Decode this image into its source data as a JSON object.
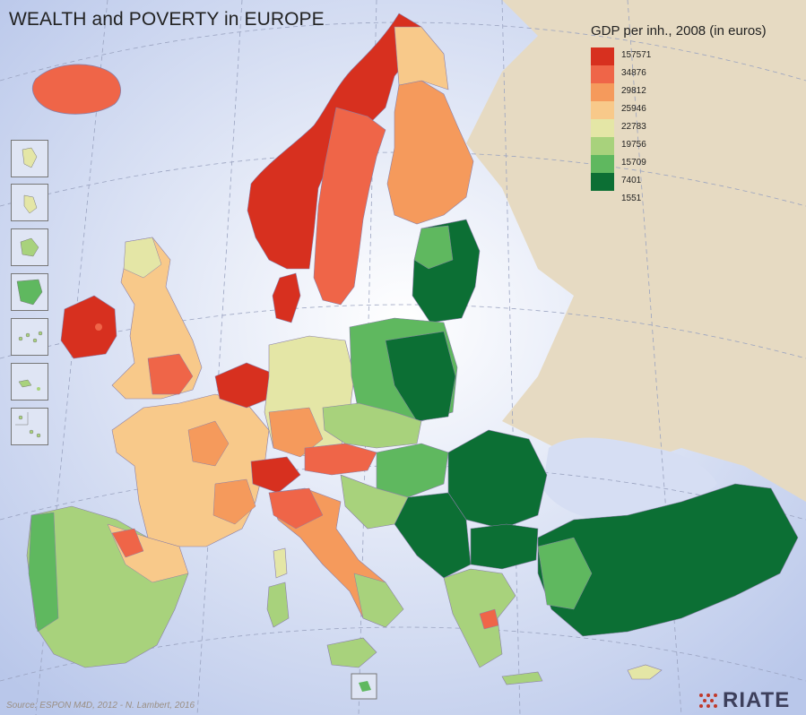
{
  "title": "WEALTH and POVERTY in EUROPE",
  "legend": {
    "title": "GDP per inh., 2008 (in euros)",
    "classes": [
      {
        "label": "157571",
        "color": "#d7301f"
      },
      {
        "label": "34876",
        "color": "#ef6548"
      },
      {
        "label": "29812",
        "color": "#f59a5c"
      },
      {
        "label": "25946",
        "color": "#f8c98a"
      },
      {
        "label": "22783",
        "color": "#e4e6a6"
      },
      {
        "label": "19756",
        "color": "#a8d27c"
      },
      {
        "label": "15709",
        "color": "#5fb85f"
      },
      {
        "label": "7401",
        "color": "#0c6f34"
      },
      {
        "label": "1551",
        "color": "#0c6f34"
      }
    ]
  },
  "source": "Source: ESPON M4D, 2012 - N. Lambert, 2016",
  "logo": "RIATE",
  "colors": {
    "sea": "#dde4f4",
    "land_outside": "#e8dcc4",
    "border": "#7a7fa8"
  },
  "insets": [
    "inset-1",
    "inset-2",
    "inset-3",
    "inset-4",
    "inset-5",
    "inset-6",
    "inset-7"
  ]
}
